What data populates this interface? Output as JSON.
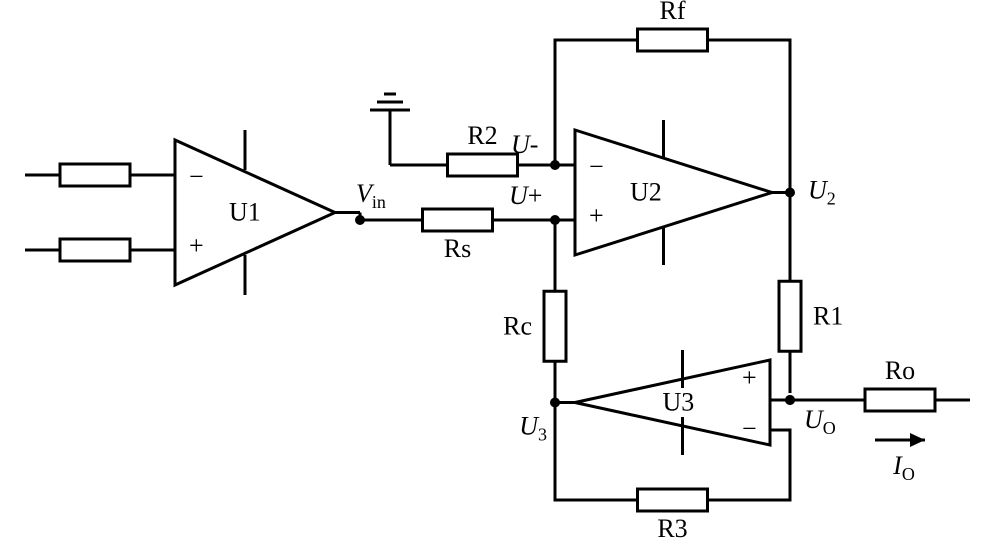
{
  "colors": {
    "stroke": "#000000",
    "background": "#ffffff",
    "text": "#000000"
  },
  "stroke_width": 3,
  "node_radius": 5,
  "resistor": {
    "width": 70,
    "height": 22
  },
  "opamps": {
    "U1": {
      "label": "U1",
      "plus": "+",
      "minus": "−"
    },
    "U2": {
      "label": "U2",
      "plus": "+",
      "minus": "−"
    },
    "U3": {
      "label": "U3",
      "plus": "+",
      "minus": "−"
    }
  },
  "resistors": {
    "R2": "R2",
    "Rs": "Rs",
    "Rf": "Rf",
    "Rc": "Rc",
    "R1": "R1",
    "R3": "R3",
    "Ro": "Ro"
  },
  "nodes": {
    "Vin": {
      "var": "V",
      "sub": "in"
    },
    "Uminus": {
      "var": "U",
      "suffix": "-"
    },
    "Uplus": {
      "var": "U",
      "suffix": "+"
    },
    "U2": {
      "var": "U",
      "sub": "2"
    },
    "U3": {
      "var": "U",
      "sub": "3"
    },
    "Uo": {
      "var": "U",
      "sub": "O"
    },
    "Io": {
      "var": "I",
      "sub": "O"
    }
  },
  "arrow": "→"
}
